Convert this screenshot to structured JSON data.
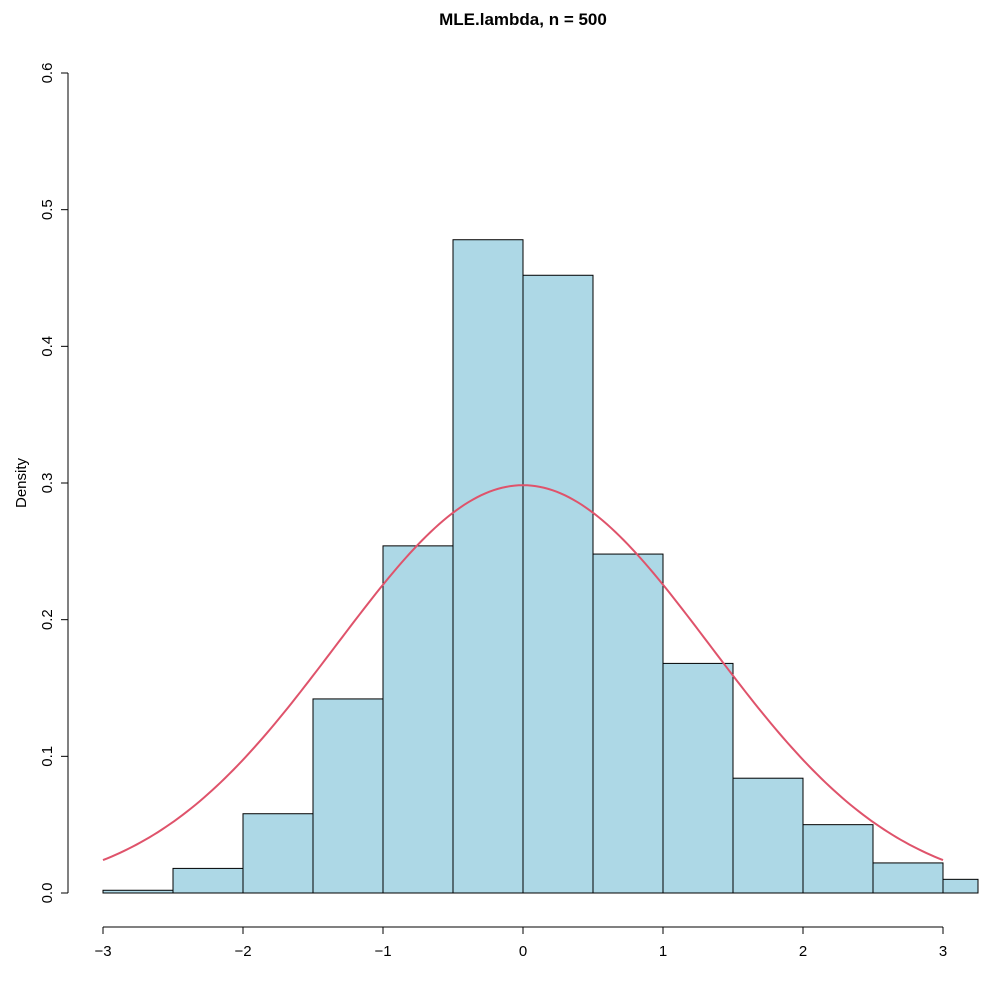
{
  "chart_data": {
    "type": "bar",
    "title": "MLE.lambda, n = 500",
    "xlabel": "",
    "ylabel": "Density",
    "bins": [
      {
        "from": -3.0,
        "to": -2.5,
        "density": 0.002
      },
      {
        "from": -2.5,
        "to": -2.0,
        "density": 0.018
      },
      {
        "from": -2.0,
        "to": -1.5,
        "density": 0.058
      },
      {
        "from": -1.5,
        "to": -1.0,
        "density": 0.142
      },
      {
        "from": -1.0,
        "to": -0.5,
        "density": 0.254
      },
      {
        "from": -0.5,
        "to": 0.0,
        "density": 0.478
      },
      {
        "from": 0.0,
        "to": 0.5,
        "density": 0.452
      },
      {
        "from": 0.5,
        "to": 1.0,
        "density": 0.248
      },
      {
        "from": 1.0,
        "to": 1.5,
        "density": 0.168
      },
      {
        "from": 1.5,
        "to": 2.0,
        "density": 0.084
      },
      {
        "from": 2.0,
        "to": 2.5,
        "density": 0.05
      },
      {
        "from": 2.5,
        "to": 3.0,
        "density": 0.022
      },
      {
        "from": 3.0,
        "to": 3.5,
        "density": 0.01
      }
    ],
    "overlay_curve": {
      "type": "normal density",
      "mean": 0,
      "sd": 1.337,
      "x_range": [
        -3,
        3
      ]
    },
    "xlim": [
      -3.25,
      3.25
    ],
    "ylim": [
      0,
      0.6
    ],
    "x_ticks": [
      -3,
      -2,
      -1,
      0,
      1,
      2,
      3
    ],
    "x_tick_labels": [
      "−3",
      "−2",
      "−1",
      "0",
      "1",
      "2",
      "3"
    ],
    "y_ticks": [
      0.0,
      0.1,
      0.2,
      0.3,
      0.4,
      0.5,
      0.6
    ],
    "y_tick_labels": [
      "0.0",
      "0.1",
      "0.2",
      "0.3",
      "0.4",
      "0.5",
      "0.6"
    ],
    "grid": false,
    "colors": {
      "bar_fill": "#add8e6",
      "bar_border": "#000000",
      "curve": "#df536b"
    }
  }
}
